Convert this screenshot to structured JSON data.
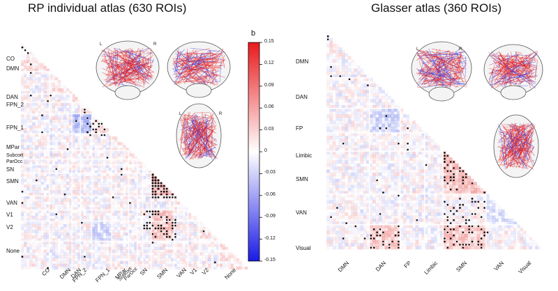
{
  "left_panel": {
    "title": "RP individual atlas (630 ROIs)",
    "networks": [
      "CO",
      "DMN",
      "DAN",
      "FPN_2",
      "FPN_1",
      "MPar",
      "Subcort",
      "ParOcc",
      "SN",
      "SMN",
      "VAN",
      "V1",
      "V2",
      "None"
    ]
  },
  "right_panel": {
    "title": "Glasser atlas (360 ROIs)",
    "networks": [
      "DMN",
      "DAN",
      "FP",
      "Limbic",
      "SMN",
      "VAN",
      "Visual"
    ]
  },
  "colorbar": {
    "label": "b",
    "ticks": [
      "0.15",
      "0.12",
      "0.09",
      "0.06",
      "0.03",
      "0",
      "-0.03",
      "-0.06",
      "-0.09",
      "-0.12",
      "-0.15"
    ],
    "max_color": "#e8191c",
    "mid_color": "#ffffff",
    "min_color": "#1a1ae6"
  },
  "brain_glyphs": [
    "L",
    "R",
    "L",
    "R",
    "L",
    "R"
  ],
  "chart_data": [
    {
      "type": "heatmap",
      "title": "RP individual atlas (630 ROIs)",
      "layout": "lower-triangle",
      "categories": [
        "CO",
        "DMN",
        "DAN",
        "FPN_2",
        "FPN_1",
        "MPar",
        "Subcort",
        "ParOcc",
        "SN",
        "SMN",
        "VAN",
        "V1",
        "V2",
        "None"
      ],
      "value_range": [
        -0.15,
        0.15
      ],
      "significance_marker": "*"
    },
    {
      "type": "heatmap",
      "title": "Glasser atlas (360 ROIs)",
      "layout": "lower-triangle",
      "categories": [
        "DMN",
        "DAN",
        "FP",
        "Limbic",
        "SMN",
        "VAN",
        "Visual"
      ],
      "value_range": [
        -0.15,
        0.15
      ],
      "significance_marker": "*"
    }
  ]
}
